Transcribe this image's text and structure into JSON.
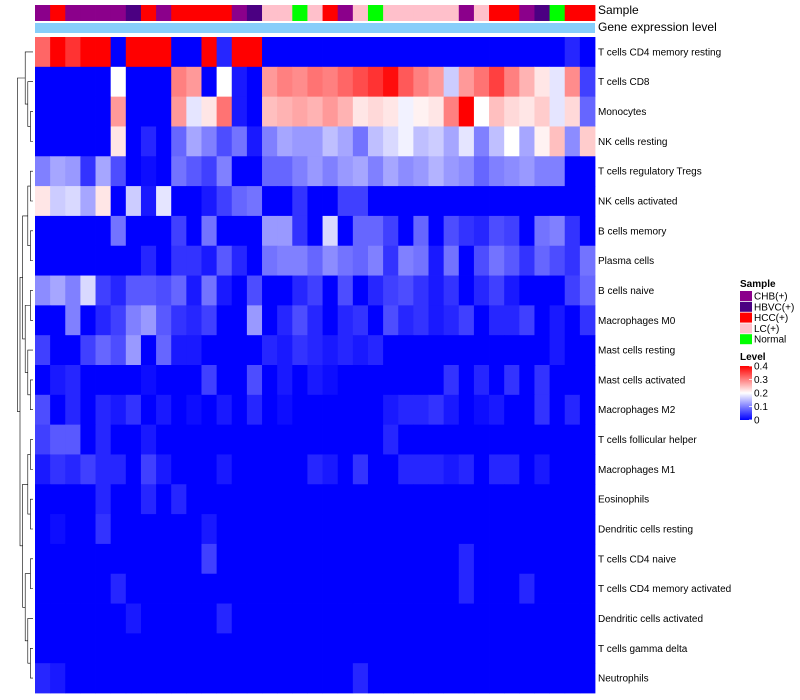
{
  "chart_data": {
    "type": "heatmap",
    "title": "",
    "annotation_tracks": [
      {
        "name": "Sample",
        "key": "samples"
      },
      {
        "name": "Gene expression level",
        "key": "expression_track"
      }
    ],
    "expression_track_color": "#87cefa",
    "color_scale": {
      "title": "Level",
      "min": 0,
      "mid": 0.2,
      "max": 0.4,
      "low_color": "#0000ff",
      "mid_color": "#ffffff",
      "high_color": "#ff0000",
      "ticks": [
        "0.4",
        "0.3",
        "0.2",
        "0.1",
        "0"
      ],
      "tick_values": [
        0.4,
        0.3,
        0.2,
        0.1,
        0
      ]
    },
    "sample_legend": {
      "title": "Sample",
      "entries": [
        {
          "label": "CHB(+)",
          "color": "#8b008b"
        },
        {
          "label": "HBVC(+)",
          "color": "#4b0082"
        },
        {
          "label": "HCC(+)",
          "color": "#ff0000"
        },
        {
          "label": "LC(+)",
          "color": "#ffc0cb"
        },
        {
          "label": "Normal",
          "color": "#00ff00"
        }
      ]
    },
    "samples": [
      "CHB(+)",
      "HCC(+)",
      "CHB(+)",
      "CHB(+)",
      "CHB(+)",
      "CHB(+)",
      "HBVC(+)",
      "HCC(+)",
      "CHB(+)",
      "HCC(+)",
      "HCC(+)",
      "HCC(+)",
      "HCC(+)",
      "CHB(+)",
      "HBVC(+)",
      "LC(+)",
      "LC(+)",
      "Normal",
      "LC(+)",
      "HCC(+)",
      "CHB(+)",
      "LC(+)",
      "Normal",
      "LC(+)",
      "LC(+)",
      "LC(+)",
      "LC(+)",
      "LC(+)",
      "CHB(+)",
      "LC(+)",
      "HCC(+)",
      "HCC(+)",
      "CHB(+)",
      "HBVC(+)",
      "Normal",
      "HCC(+)",
      "HCC(+)"
    ],
    "rows": [
      "T cells CD4 memory resting",
      "T cells CD8",
      "Monocytes",
      "NK cells resting",
      "T cells regulatory  Tregs",
      "NK cells activated",
      "B cells memory",
      "Plasma cells",
      "B cells naive",
      "Macrophages M0",
      "Mast cells resting",
      "Mast cells activated",
      "Macrophages M2",
      "T cells follicular helper",
      "Macrophages M1",
      "Eosinophils",
      "Dendritic cells resting",
      "T cells CD4 naive",
      "T cells CD4 memory activated",
      "Dendritic cells activated",
      "T cells gamma delta",
      "Neutrophils"
    ],
    "values": [
      [
        0.32,
        0.4,
        0.36,
        0.4,
        0.4,
        0.0,
        0.4,
        0.4,
        0.4,
        0.0,
        0.0,
        0.4,
        0.03,
        0.4,
        0.4,
        0.0,
        0.0,
        0.0,
        0.0,
        0.0,
        0.0,
        0.0,
        0.0,
        0.0,
        0.0,
        0.0,
        0.0,
        0.0,
        0.0,
        0.0,
        0.0,
        0.0,
        0.0,
        0.0,
        0.0,
        0.03,
        0.0
      ],
      [
        0.0,
        0.0,
        0.0,
        0.0,
        0.0,
        0.2,
        0.0,
        0.0,
        0.0,
        0.3,
        0.28,
        0.0,
        0.2,
        0.02,
        0.0,
        0.28,
        0.3,
        0.29,
        0.31,
        0.3,
        0.32,
        0.34,
        0.36,
        0.39,
        0.33,
        0.3,
        0.28,
        0.16,
        0.28,
        0.31,
        0.35,
        0.3,
        0.26,
        0.22,
        0.18,
        0.29,
        0.05
      ],
      [
        0.0,
        0.0,
        0.0,
        0.0,
        0.0,
        0.28,
        0.0,
        0.0,
        0.0,
        0.28,
        0.18,
        0.22,
        0.31,
        0.02,
        0.0,
        0.25,
        0.26,
        0.27,
        0.26,
        0.28,
        0.26,
        0.22,
        0.23,
        0.22,
        0.19,
        0.21,
        0.22,
        0.3,
        0.4,
        0.2,
        0.25,
        0.23,
        0.22,
        0.24,
        0.18,
        0.23,
        0.08
      ],
      [
        0.0,
        0.0,
        0.0,
        0.0,
        0.0,
        0.22,
        0.0,
        0.03,
        0.0,
        0.08,
        0.13,
        0.1,
        0.06,
        0.09,
        0.02,
        0.1,
        0.13,
        0.12,
        0.12,
        0.15,
        0.13,
        0.09,
        0.15,
        0.17,
        0.19,
        0.15,
        0.16,
        0.13,
        0.18,
        0.1,
        0.15,
        0.2,
        0.13,
        0.21,
        0.25,
        0.11,
        0.24
      ],
      [
        0.1,
        0.13,
        0.12,
        0.04,
        0.13,
        0.06,
        0.0,
        0.01,
        0.0,
        0.09,
        0.07,
        0.05,
        0.1,
        0.0,
        0.0,
        0.08,
        0.08,
        0.1,
        0.12,
        0.1,
        0.12,
        0.13,
        0.1,
        0.13,
        0.11,
        0.12,
        0.14,
        0.12,
        0.11,
        0.08,
        0.1,
        0.11,
        0.12,
        0.1,
        0.1,
        0.0,
        0.0
      ],
      [
        0.22,
        0.16,
        0.17,
        0.13,
        0.22,
        0.0,
        0.16,
        0.02,
        0.18,
        0.0,
        0.0,
        0.02,
        0.05,
        0.08,
        0.09,
        0.0,
        0.0,
        0.04,
        0.0,
        0.0,
        0.05,
        0.05,
        0.0,
        0.0,
        0.0,
        0.0,
        0.0,
        0.0,
        0.0,
        0.0,
        0.0,
        0.0,
        0.0,
        0.0,
        0.0,
        0.0,
        0.0
      ],
      [
        0.0,
        0.0,
        0.0,
        0.0,
        0.0,
        0.09,
        0.0,
        0.0,
        0.0,
        0.05,
        0.0,
        0.09,
        0.0,
        0.0,
        0.0,
        0.12,
        0.12,
        0.04,
        0.0,
        0.17,
        0.0,
        0.08,
        0.08,
        0.05,
        0.0,
        0.08,
        0.0,
        0.06,
        0.04,
        0.03,
        0.06,
        0.05,
        0.0,
        0.09,
        0.1,
        0.04,
        0.0
      ],
      [
        0.0,
        0.0,
        0.0,
        0.0,
        0.0,
        0.0,
        0.0,
        0.03,
        0.0,
        0.04,
        0.04,
        0.02,
        0.07,
        0.03,
        0.0,
        0.09,
        0.1,
        0.1,
        0.08,
        0.11,
        0.09,
        0.08,
        0.1,
        0.04,
        0.1,
        0.09,
        0.02,
        0.09,
        0.0,
        0.06,
        0.09,
        0.07,
        0.04,
        0.08,
        0.06,
        0.04,
        0.09
      ],
      [
        0.11,
        0.13,
        0.1,
        0.17,
        0.05,
        0.03,
        0.07,
        0.07,
        0.06,
        0.08,
        0.02,
        0.09,
        0.02,
        0.0,
        0.06,
        0.0,
        0.0,
        0.03,
        0.05,
        0.0,
        0.06,
        0.0,
        0.03,
        0.05,
        0.06,
        0.04,
        0.02,
        0.04,
        0.0,
        0.03,
        0.05,
        0.02,
        0.0,
        0.0,
        0.0,
        0.05,
        0.08
      ],
      [
        0.0,
        0.0,
        0.1,
        0.0,
        0.03,
        0.05,
        0.1,
        0.12,
        0.07,
        0.04,
        0.03,
        0.05,
        0.0,
        0.0,
        0.12,
        0.0,
        0.03,
        0.06,
        0.03,
        0.0,
        0.03,
        0.04,
        0.0,
        0.06,
        0.03,
        0.04,
        0.02,
        0.03,
        0.05,
        0.0,
        0.03,
        0.03,
        0.05,
        0.0,
        0.02,
        0.0,
        0.04
      ],
      [
        0.05,
        0.0,
        0.0,
        0.05,
        0.08,
        0.06,
        0.12,
        0.0,
        0.08,
        0.02,
        0.02,
        0.0,
        0.0,
        0.0,
        0.0,
        0.03,
        0.02,
        0.04,
        0.03,
        0.02,
        0.03,
        0.02,
        0.03,
        0.0,
        0.0,
        0.0,
        0.0,
        0.0,
        0.0,
        0.0,
        0.0,
        0.0,
        0.0,
        0.0,
        0.02,
        0.0,
        0.0
      ],
      [
        0.0,
        0.02,
        0.03,
        0.0,
        0.0,
        0.0,
        0.0,
        0.01,
        0.0,
        0.0,
        0.0,
        0.05,
        0.0,
        0.0,
        0.06,
        0.0,
        0.02,
        0.0,
        0.02,
        0.01,
        0.0,
        0.0,
        0.0,
        0.0,
        0.0,
        0.0,
        0.0,
        0.04,
        0.0,
        0.03,
        0.0,
        0.04,
        0.0,
        0.04,
        0.0,
        0.0,
        0.0
      ],
      [
        0.06,
        0.0,
        0.03,
        0.0,
        0.03,
        0.02,
        0.04,
        0.0,
        0.02,
        0.0,
        0.01,
        0.0,
        0.02,
        0.0,
        0.03,
        0.0,
        0.01,
        0.0,
        0.0,
        0.0,
        0.0,
        0.0,
        0.0,
        0.02,
        0.03,
        0.03,
        0.04,
        0.02,
        0.0,
        0.01,
        0.02,
        0.0,
        0.0,
        0.04,
        0.0,
        0.03,
        0.0
      ],
      [
        0.05,
        0.07,
        0.07,
        0.0,
        0.03,
        0.0,
        0.0,
        0.02,
        0.0,
        0.0,
        0.0,
        0.0,
        0.0,
        0.0,
        0.0,
        0.0,
        0.0,
        0.0,
        0.0,
        0.0,
        0.0,
        0.0,
        0.0,
        0.03,
        0.0,
        0.0,
        0.0,
        0.0,
        0.0,
        0.0,
        0.0,
        0.0,
        0.0,
        0.0,
        0.0,
        0.0,
        0.0
      ],
      [
        0.02,
        0.04,
        0.03,
        0.05,
        0.03,
        0.03,
        0.0,
        0.05,
        0.02,
        0.0,
        0.0,
        0.0,
        0.02,
        0.0,
        0.0,
        0.0,
        0.0,
        0.0,
        0.03,
        0.02,
        0.0,
        0.04,
        0.0,
        0.0,
        0.03,
        0.03,
        0.03,
        0.02,
        0.03,
        0.0,
        0.03,
        0.03,
        0.0,
        0.02,
        0.0,
        0.0,
        0.0
      ],
      [
        0.0,
        0.0,
        0.0,
        0.0,
        0.03,
        0.0,
        0.0,
        0.03,
        0.0,
        0.03,
        0.0,
        0.0,
        0.0,
        0.0,
        0.0,
        0.0,
        0.0,
        0.0,
        0.0,
        0.0,
        0.0,
        0.0,
        0.0,
        0.0,
        0.0,
        0.0,
        0.0,
        0.0,
        0.0,
        0.0,
        0.0,
        0.0,
        0.0,
        0.0,
        0.0,
        0.0,
        0.0
      ],
      [
        0.0,
        0.01,
        0.0,
        0.0,
        0.04,
        0.0,
        0.0,
        0.0,
        0.0,
        0.0,
        0.0,
        0.02,
        0.0,
        0.0,
        0.0,
        0.0,
        0.0,
        0.0,
        0.0,
        0.0,
        0.0,
        0.0,
        0.0,
        0.0,
        0.0,
        0.0,
        0.0,
        0.0,
        0.0,
        0.0,
        0.0,
        0.0,
        0.0,
        0.0,
        0.0,
        0.0,
        0.0
      ],
      [
        0.0,
        0.0,
        0.0,
        0.0,
        0.0,
        0.0,
        0.0,
        0.0,
        0.0,
        0.0,
        0.0,
        0.05,
        0.0,
        0.0,
        0.0,
        0.0,
        0.0,
        0.0,
        0.0,
        0.0,
        0.0,
        0.0,
        0.0,
        0.0,
        0.0,
        0.0,
        0.0,
        0.0,
        0.03,
        0.0,
        0.0,
        0.0,
        0.0,
        0.0,
        0.0,
        0.0,
        0.0
      ],
      [
        0.0,
        0.0,
        0.0,
        0.0,
        0.0,
        0.03,
        0.0,
        0.0,
        0.0,
        0.0,
        0.0,
        0.0,
        0.0,
        0.0,
        0.0,
        0.0,
        0.0,
        0.0,
        0.0,
        0.0,
        0.0,
        0.0,
        0.0,
        0.0,
        0.0,
        0.0,
        0.0,
        0.0,
        0.03,
        0.0,
        0.0,
        0.0,
        0.03,
        0.0,
        0.0,
        0.0,
        0.0
      ],
      [
        0.0,
        0.0,
        0.0,
        0.0,
        0.0,
        0.0,
        0.02,
        0.0,
        0.0,
        0.0,
        0.0,
        0.0,
        0.03,
        0.0,
        0.0,
        0.0,
        0.0,
        0.0,
        0.0,
        0.0,
        0.0,
        0.0,
        0.0,
        0.0,
        0.0,
        0.0,
        0.0,
        0.0,
        0.0,
        0.0,
        0.0,
        0.0,
        0.0,
        0.0,
        0.0,
        0.0,
        0.0
      ],
      [
        0.0,
        0.0,
        0.0,
        0.0,
        0.0,
        0.0,
        0.0,
        0.0,
        0.0,
        0.0,
        0.0,
        0.0,
        0.0,
        0.0,
        0.0,
        0.0,
        0.0,
        0.0,
        0.0,
        0.0,
        0.0,
        0.0,
        0.0,
        0.0,
        0.0,
        0.0,
        0.0,
        0.0,
        0.0,
        0.0,
        0.0,
        0.0,
        0.0,
        0.0,
        0.0,
        0.0,
        0.0
      ],
      [
        0.03,
        0.02,
        0.0,
        0.0,
        0.0,
        0.0,
        0.0,
        0.0,
        0.0,
        0.0,
        0.0,
        0.0,
        0.0,
        0.0,
        0.0,
        0.0,
        0.0,
        0.0,
        0.0,
        0.0,
        0.0,
        0.03,
        0.0,
        0.0,
        0.0,
        0.0,
        0.0,
        0.0,
        0.0,
        0.0,
        0.0,
        0.0,
        0.0,
        0.0,
        0.0,
        0.0,
        0.0
      ]
    ]
  }
}
